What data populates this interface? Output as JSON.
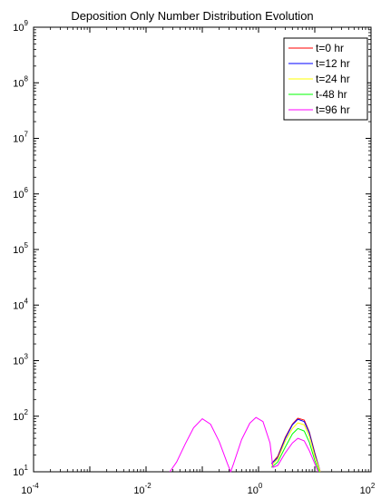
{
  "chart_data": {
    "type": "line",
    "title": "Deposition Only Number Distribution Evolution",
    "xlabel": "",
    "ylabel": "",
    "x_scale": "log",
    "y_scale": "log",
    "xlim": [
      0.0001,
      100
    ],
    "ylim": [
      10,
      1000000000
    ],
    "x_ticks": [
      {
        "base": "10",
        "exp": "-4",
        "value": 0.0001
      },
      {
        "base": "10",
        "exp": "-2",
        "value": 0.01
      },
      {
        "base": "10",
        "exp": "0",
        "value": 1
      },
      {
        "base": "10",
        "exp": "2",
        "value": 100
      }
    ],
    "y_ticks": [
      {
        "base": "10",
        "exp": "1",
        "value": 10
      },
      {
        "base": "10",
        "exp": "2",
        "value": 100
      },
      {
        "base": "10",
        "exp": "3",
        "value": 1000
      },
      {
        "base": "10",
        "exp": "4",
        "value": 10000
      },
      {
        "base": "10",
        "exp": "5",
        "value": 100000
      },
      {
        "base": "10",
        "exp": "6",
        "value": 1000000
      },
      {
        "base": "10",
        "exp": "7",
        "value": 10000000
      },
      {
        "base": "10",
        "exp": "8",
        "value": 100000000
      },
      {
        "base": "10",
        "exp": "9",
        "value": 1000000000
      }
    ],
    "grid": false,
    "legend_position": "top-right",
    "series": [
      {
        "name": "t=0 hr",
        "color": "#ff0000",
        "x": [
          1.7,
          2.2,
          3,
          4,
          5,
          6.5,
          8,
          10,
          12.5
        ],
        "y": [
          14,
          19,
          42,
          72,
          92,
          85,
          52,
          22,
          10
        ]
      },
      {
        "name": "t=12 hr",
        "color": "#0000ff",
        "x": [
          1.7,
          2.2,
          3,
          4,
          5,
          6.5,
          8,
          10,
          12.5
        ],
        "y": [
          14,
          18,
          40,
          70,
          88,
          80,
          50,
          21,
          10
        ]
      },
      {
        "name": "t=24 hr",
        "color": "#ffff00",
        "x": [
          1.7,
          2.2,
          3,
          4,
          5,
          6.5,
          8,
          10,
          12.5
        ],
        "y": [
          13,
          17,
          36,
          60,
          76,
          70,
          44,
          19,
          10
        ]
      },
      {
        "name": "t-48 hr",
        "color": "#00ff00",
        "x": [
          1.7,
          2.2,
          3,
          4,
          5,
          6.5,
          8,
          10,
          12
        ],
        "y": [
          12,
          15,
          28,
          48,
          60,
          54,
          34,
          16,
          10
        ]
      },
      {
        "name": "t=96 hr",
        "color": "#ff00ff",
        "x": [
          0.0265,
          0.035,
          0.05,
          0.07,
          0.1,
          0.14,
          0.2,
          0.28,
          0.32,
          0.36,
          0.5,
          0.7,
          0.9,
          1.2,
          1.6,
          1.8,
          2.2,
          3,
          4,
          5,
          6.5,
          8,
          10,
          11.5
        ],
        "y": [
          10,
          15,
          32,
          62,
          90,
          72,
          35,
          14,
          10,
          14,
          38,
          75,
          95,
          80,
          33,
          12,
          13,
          22,
          33,
          40,
          36,
          24,
          14,
          10
        ]
      }
    ]
  }
}
